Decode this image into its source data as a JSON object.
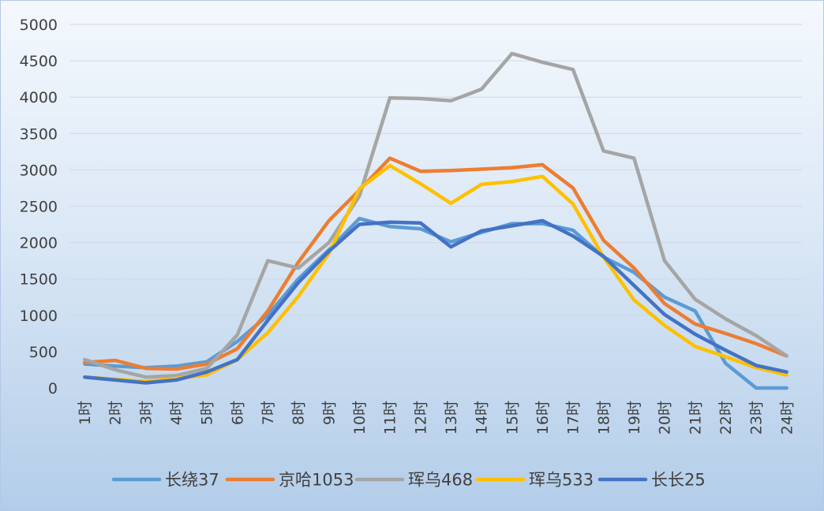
{
  "chart_data": {
    "type": "line",
    "categories": [
      "1时",
      "2时",
      "3时",
      "4时",
      "5时",
      "6时",
      "7时",
      "8时",
      "9时",
      "10时",
      "11时",
      "12时",
      "13时",
      "14时",
      "15时",
      "16时",
      "17时",
      "18时",
      "19时",
      "20时",
      "21时",
      "22时",
      "23时",
      "24时"
    ],
    "ylim": [
      0,
      5000
    ],
    "yticks": [
      0,
      500,
      1000,
      1500,
      2000,
      2500,
      3000,
      3500,
      4000,
      4500,
      5000
    ],
    "grid": true,
    "legend": "bottom",
    "series": [
      {
        "name": "长绕37",
        "color": "#5b9bd5",
        "values": [
          330,
          300,
          280,
          300,
          360,
          640,
          1000,
          1500,
          1900,
          2330,
          2220,
          2190,
          2010,
          2140,
          2260,
          2260,
          2170,
          1800,
          1590,
          1250,
          1060,
          340,
          0,
          0
        ]
      },
      {
        "name": "京哈1053",
        "color": "#ed7d31",
        "values": [
          350,
          380,
          270,
          260,
          330,
          540,
          1060,
          1730,
          2300,
          2720,
          3160,
          2980,
          2990,
          3010,
          3030,
          3070,
          2750,
          2030,
          1650,
          1160,
          880,
          750,
          610,
          440
        ]
      },
      {
        "name": "珲乌468",
        "color": "#a5a5a5",
        "values": [
          390,
          250,
          150,
          170,
          270,
          730,
          1750,
          1650,
          2000,
          2640,
          3990,
          3980,
          3950,
          4110,
          4600,
          4480,
          4380,
          3260,
          3160,
          1750,
          1220,
          950,
          720,
          440
        ]
      },
      {
        "name": "珲乌533",
        "color": "#ffc000",
        "values": [
          150,
          120,
          90,
          130,
          180,
          390,
          760,
          1260,
          1850,
          2740,
          3060,
          2810,
          2540,
          2800,
          2840,
          2910,
          2530,
          1800,
          1210,
          860,
          570,
          430,
          280,
          180
        ]
      },
      {
        "name": "长长25",
        "color": "#4472c4",
        "values": [
          150,
          110,
          70,
          110,
          220,
          390,
          930,
          1450,
          1880,
          2250,
          2280,
          2270,
          1940,
          2160,
          2230,
          2300,
          2090,
          1810,
          1410,
          1010,
          740,
          520,
          310,
          220
        ]
      }
    ]
  }
}
